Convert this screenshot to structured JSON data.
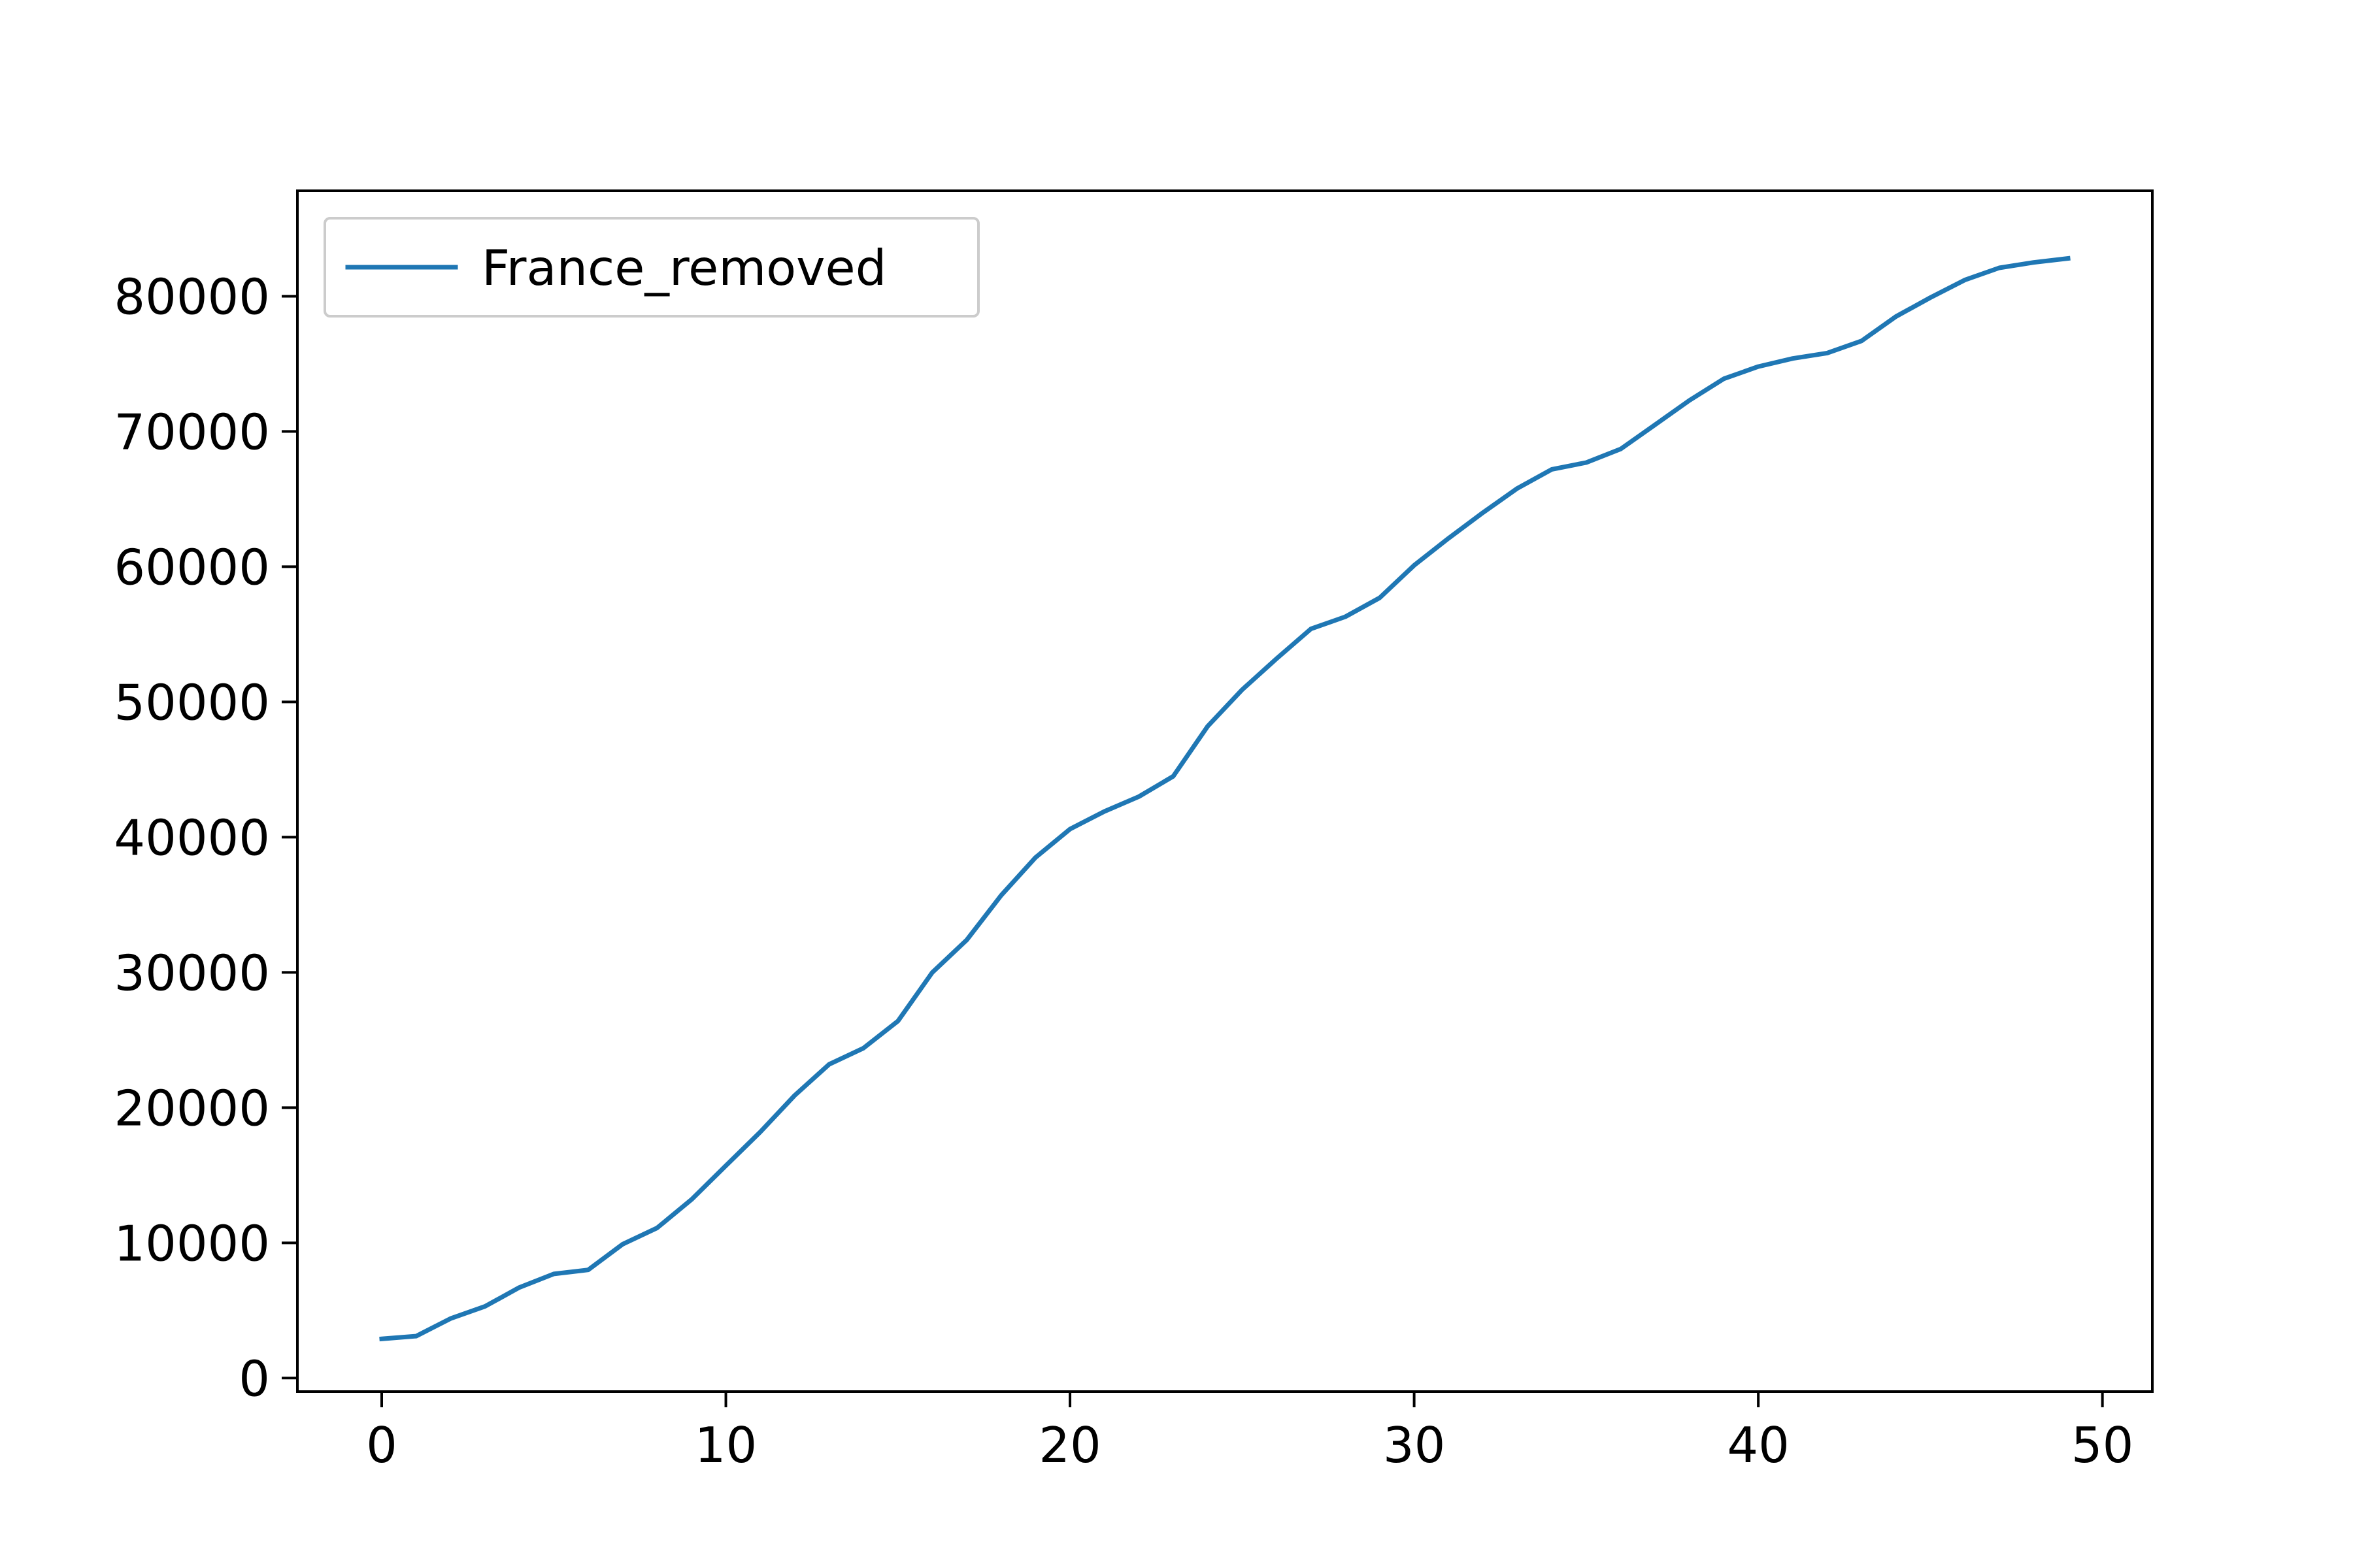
{
  "chart_data": {
    "type": "line",
    "title": "",
    "xlabel": "",
    "ylabel": "",
    "xlim": [
      -2.45,
      51.45
    ],
    "ylim": [
      -1000,
      87800
    ],
    "xticks": [
      0,
      10,
      20,
      30,
      40,
      50
    ],
    "yticks": [
      0,
      10000,
      20000,
      30000,
      40000,
      50000,
      60000,
      70000,
      80000
    ],
    "grid": false,
    "legend": {
      "placement": "upper-left"
    },
    "series": [
      {
        "name": "France_removed",
        "color": "#1f77b4",
        "x": [
          0,
          1,
          2,
          3,
          4,
          5,
          6,
          7,
          8,
          9,
          10,
          11,
          12,
          13,
          14,
          15,
          16,
          17,
          18,
          19,
          20,
          21,
          22,
          23,
          24,
          25,
          26,
          27,
          28,
          29,
          30,
          31,
          32,
          33,
          34,
          35,
          36,
          37,
          38,
          39,
          40,
          41,
          42,
          43,
          44,
          45,
          46,
          47,
          48,
          49
        ],
        "y": [
          2900,
          3100,
          4400,
          5300,
          6700,
          7700,
          8000,
          9900,
          11100,
          13200,
          15700,
          18200,
          20900,
          23200,
          24400,
          26400,
          30000,
          32400,
          35700,
          38500,
          40600,
          41900,
          43000,
          44500,
          48200,
          50900,
          53200,
          55400,
          56300,
          57700,
          60100,
          62100,
          64000,
          65800,
          67200,
          67700,
          68700,
          70500,
          72300,
          73900,
          74800,
          75400,
          75800,
          76700,
          78500,
          79900,
          81200,
          82100,
          82500,
          82800
        ]
      }
    ]
  }
}
